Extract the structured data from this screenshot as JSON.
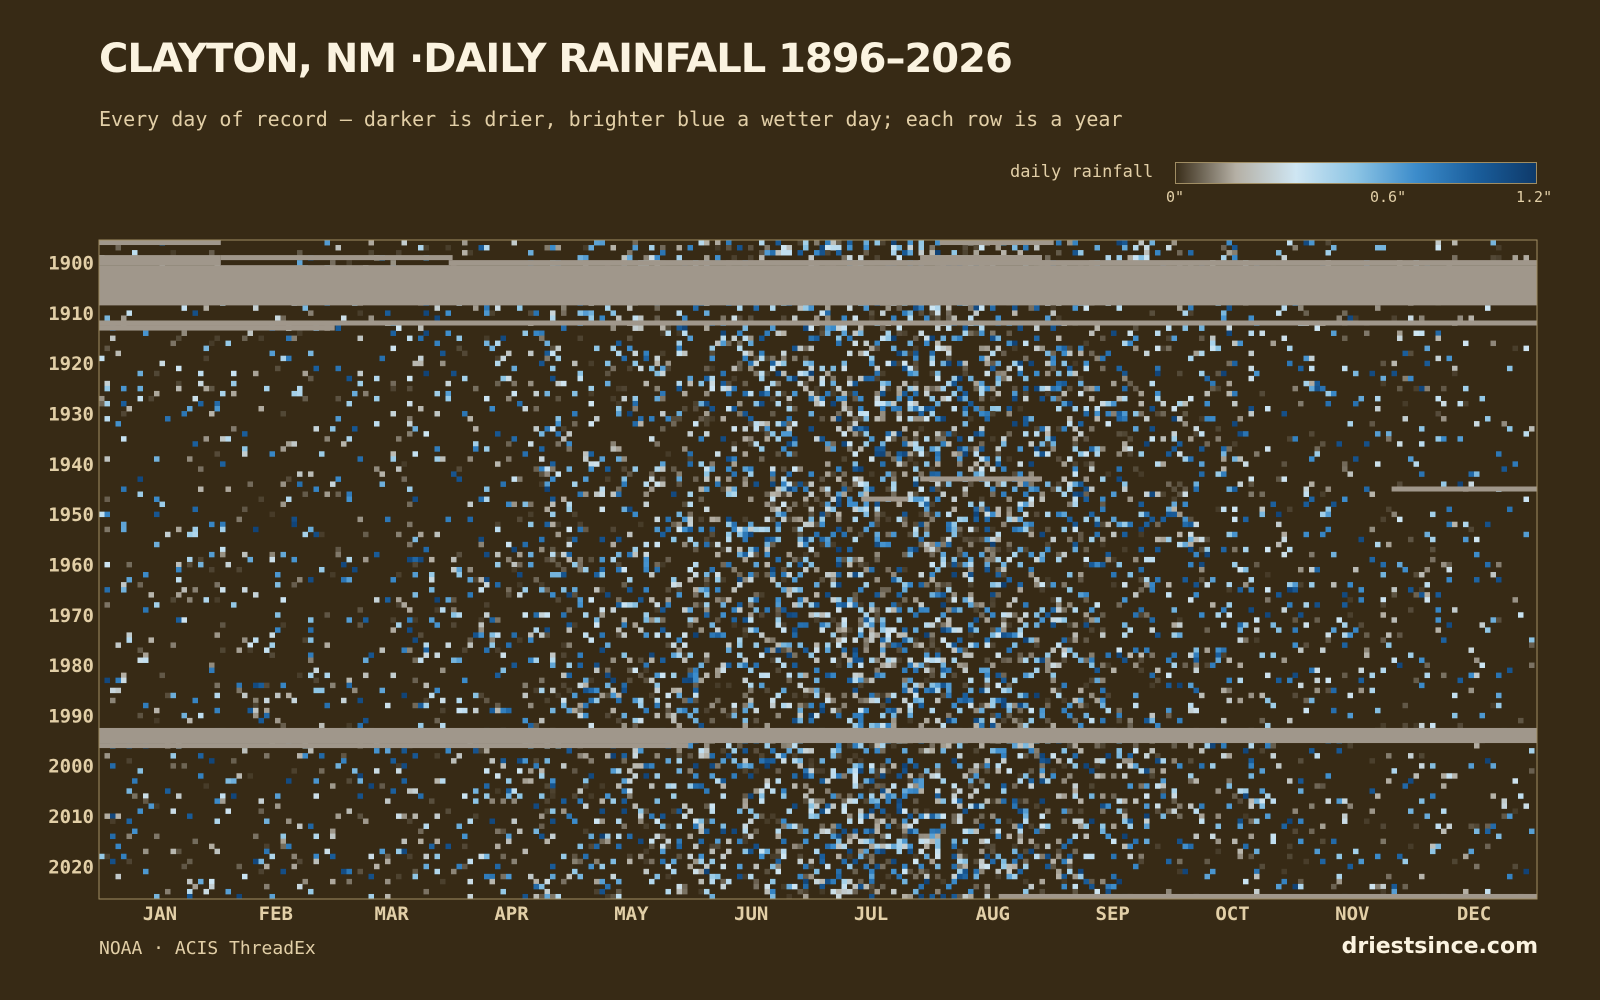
{
  "header": {
    "title": "CLAYTON, NM ·DAILY RAINFALL 1896–2026",
    "subtitle": "Every day of record — darker is drier, brighter blue a wetter day; each row is a year"
  },
  "legend": {
    "label": "daily rainfall",
    "ticks": [
      "0\"",
      "0.6\"",
      "1.2\""
    ],
    "tick_values": [
      0,
      0.6,
      1.2
    ],
    "colors": [
      "#3a2e1a",
      "#b5b0a5",
      "#cfe6f3",
      "#8cc4e4",
      "#3c8ccb",
      "#1a5e9c",
      "#0e3a6a"
    ]
  },
  "colors": {
    "background": "#372a15",
    "missing": "#a0978b",
    "frame": "#a08d63",
    "label": "#e2cfa7"
  },
  "chart_data": {
    "type": "heatmap",
    "x": "day of year",
    "y": "year",
    "xlim": [
      1,
      366
    ],
    "ylim": [
      1896,
      2026
    ],
    "months": [
      "JAN",
      "FEB",
      "MAR",
      "APR",
      "MAY",
      "JUN",
      "JUL",
      "AUG",
      "SEP",
      "OCT",
      "NOV",
      "DEC"
    ],
    "year_ticks": [
      1900,
      1910,
      1920,
      1930,
      1940,
      1950,
      1960,
      1970,
      1980,
      1990,
      2000,
      2010,
      2020
    ],
    "scale_max": 1.2,
    "unit": "inches",
    "missing_spans": [
      {
        "start_year": 1896,
        "start_day": 1,
        "end_year": 1896,
        "end_day": 31
      },
      {
        "start_year": 1896,
        "start_day": 215,
        "end_year": 1896,
        "end_day": 243
      },
      {
        "start_year": 1899,
        "start_day": 1,
        "end_year": 1900,
        "end_day": 31
      },
      {
        "start_year": 1899,
        "start_day": 32,
        "end_year": 1899,
        "end_day": 90
      },
      {
        "start_year": 1900,
        "start_day": 90,
        "end_year": 1900,
        "end_day": 210
      },
      {
        "start_year": 1900,
        "start_day": 210,
        "end_year": 1899,
        "end_day": 240
      },
      {
        "start_year": 1899,
        "start_day": 210,
        "end_year": 1899,
        "end_day": 240
      },
      {
        "start_year": 1900,
        "start_day": 240,
        "end_year": 1900,
        "end_day": 366
      },
      {
        "start_year": 1901,
        "start_day": 1,
        "end_year": 1908,
        "end_day": 366
      },
      {
        "start_year": 1912,
        "start_day": 1,
        "end_year": 1912,
        "end_day": 366
      },
      {
        "start_year": 1913,
        "start_day": 1,
        "end_year": 1913,
        "end_day": 60
      },
      {
        "start_year": 1943,
        "start_day": 210,
        "end_year": 1943,
        "end_day": 240
      },
      {
        "start_year": 1945,
        "start_day": 330,
        "end_year": 1945,
        "end_day": 366
      },
      {
        "start_year": 1947,
        "start_day": 195,
        "end_year": 1947,
        "end_day": 206
      },
      {
        "start_year": 1993,
        "start_day": 1,
        "end_year": 1995,
        "end_day": 366
      },
      {
        "start_year": 1996,
        "start_day": 1,
        "end_year": 1996,
        "end_day": 150
      },
      {
        "start_year": 2026,
        "start_day": 230,
        "end_year": 2026,
        "end_day": 366
      }
    ],
    "seasonal_wet_fraction": [
      {
        "month": "JAN",
        "fraction": 0.07
      },
      {
        "month": "FEB",
        "fraction": 0.08
      },
      {
        "month": "MAR",
        "fraction": 0.1
      },
      {
        "month": "APR",
        "fraction": 0.14
      },
      {
        "month": "MAY",
        "fraction": 0.22
      },
      {
        "month": "JUN",
        "fraction": 0.27
      },
      {
        "month": "JUL",
        "fraction": 0.36
      },
      {
        "month": "AUG",
        "fraction": 0.35
      },
      {
        "month": "SEP",
        "fraction": 0.2
      },
      {
        "month": "OCT",
        "fraction": 0.13
      },
      {
        "month": "NOV",
        "fraction": 0.08
      },
      {
        "month": "DEC",
        "fraction": 0.07
      }
    ]
  },
  "footer": {
    "source": "NOAA · ACIS ThreadEx",
    "brand": "driestsince.com"
  }
}
